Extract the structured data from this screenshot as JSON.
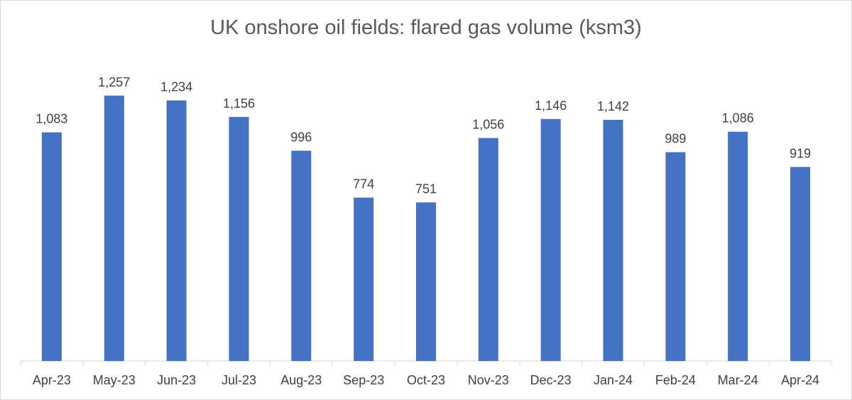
{
  "chart_data": {
    "type": "bar",
    "title": "UK onshore oil fields: flared gas volume (ksm3)",
    "categories": [
      "Apr-23",
      "May-23",
      "Jun-23",
      "Jul-23",
      "Aug-23",
      "Sep-23",
      "Oct-23",
      "Nov-23",
      "Dec-23",
      "Jan-24",
      "Feb-24",
      "Mar-24",
      "Apr-24"
    ],
    "values": [
      1083,
      1257,
      1234,
      1156,
      996,
      774,
      751,
      1056,
      1146,
      1142,
      989,
      1086,
      919
    ],
    "data_labels": [
      "1,083",
      "1,257",
      "1,234",
      "1,156",
      "996",
      "774",
      "751",
      "1,056",
      "1,146",
      "1,142",
      "989",
      "1,086",
      "919"
    ],
    "xlabel": "",
    "ylabel": "",
    "ylim": [
      0,
      1400
    ],
    "y_axis_visible": false,
    "grid": false,
    "legend": "none",
    "colors": {
      "bar": "#4472c4",
      "axis": "#d9d9d9",
      "text": "#404040",
      "title": "#595959"
    }
  }
}
